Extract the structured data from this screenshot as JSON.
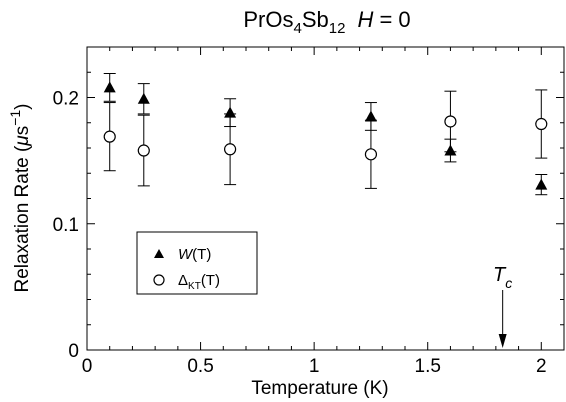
{
  "chart_data": {
    "type": "scatter",
    "title": {
      "compound_base": "PrOs",
      "compound_sub1": "4",
      "compound_mid": "Sb",
      "compound_sub2": "12",
      "field_var": "H",
      "field_value": " = 0"
    },
    "xlabel": "Temperature  (K)",
    "ylabel": {
      "text": "Relaxation Rate  (",
      "unit_mu": "μ",
      "unit_s": "s",
      "unit_sup": "−1",
      "close": ")"
    },
    "xlim": [
      0,
      2.1
    ],
    "ylim": [
      0,
      0.24
    ],
    "x_ticks": [
      {
        "value": 0,
        "label": "0"
      },
      {
        "value": 0.5,
        "label": "0.5"
      },
      {
        "value": 1,
        "label": "1"
      },
      {
        "value": 1.5,
        "label": "1.5"
      },
      {
        "value": 2,
        "label": "2"
      }
    ],
    "y_ticks": [
      {
        "value": 0,
        "label": "0"
      },
      {
        "value": 0.1,
        "label": "0.1"
      },
      {
        "value": 0.2,
        "label": "0.2"
      }
    ],
    "series": [
      {
        "name_var": "W",
        "name_arg": "(T)",
        "marker": "filled-triangle",
        "points": [
          {
            "x": 0.1,
            "y": 0.208,
            "err": 0.011
          },
          {
            "x": 0.25,
            "y": 0.199,
            "err": 0.012
          },
          {
            "x": 0.63,
            "y": 0.188,
            "err": 0.011
          },
          {
            "x": 1.25,
            "y": 0.185,
            "err": 0.011
          },
          {
            "x": 1.6,
            "y": 0.158,
            "err": 0.009
          },
          {
            "x": 2.0,
            "y": 0.131,
            "err": 0.008
          }
        ]
      },
      {
        "name_var": "Δ",
        "name_sub": "KT",
        "name_arg": "(T)",
        "marker": "open-circle",
        "points": [
          {
            "x": 0.1,
            "y": 0.169,
            "err": 0.027
          },
          {
            "x": 0.25,
            "y": 0.158,
            "err": 0.028
          },
          {
            "x": 0.63,
            "y": 0.159,
            "err": 0.028
          },
          {
            "x": 1.25,
            "y": 0.155,
            "err": 0.027
          },
          {
            "x": 1.6,
            "y": 0.181,
            "err": 0.024
          },
          {
            "x": 2.0,
            "y": 0.179,
            "err": 0.027
          }
        ]
      }
    ],
    "annotation": {
      "text_var": "T",
      "text_sub": "c",
      "x": 1.83,
      "arrow": "down"
    },
    "legend_position": "lower-left",
    "grid": false
  }
}
